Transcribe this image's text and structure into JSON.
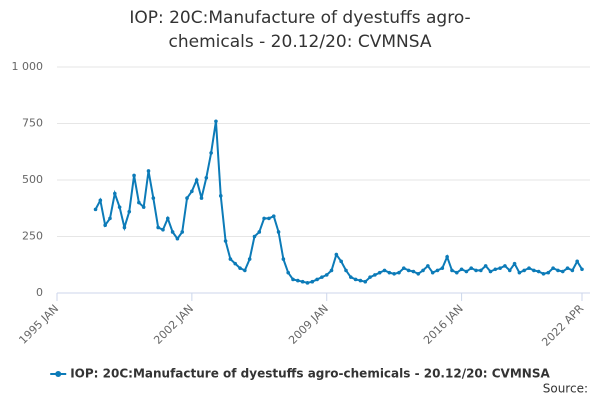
{
  "chart_data": {
    "type": "line",
    "title": "IOP: 20C:Manufacture of dyestuffs agro-chemicals - 20.12/20: CVMNSA",
    "source": "Source:",
    "xlim": [
      "1995-01",
      "2022-04"
    ],
    "xticks": [
      {
        "value": "1995-01",
        "label": "1995 JAN"
      },
      {
        "value": "2002-01",
        "label": "2002 JAN"
      },
      {
        "value": "2009-01",
        "label": "2009 JAN"
      },
      {
        "value": "2016-01",
        "label": "2016 JAN"
      },
      {
        "value": "2022-04",
        "label": "2022 APR"
      }
    ],
    "ylim": [
      0,
      1000
    ],
    "yticks": [
      0,
      250,
      500,
      750,
      {
        "value": 1000,
        "label": "1 000"
      }
    ],
    "grid": true,
    "legend": "bottom",
    "x": [
      "1997-01",
      "1997-04",
      "1997-07",
      "1997-10",
      "1998-01",
      "1998-04",
      "1998-07",
      "1998-10",
      "1999-01",
      "1999-04",
      "1999-07",
      "1999-10",
      "2000-01",
      "2000-04",
      "2000-07",
      "2000-10",
      "2001-01",
      "2001-04",
      "2001-07",
      "2001-10",
      "2002-01",
      "2002-04",
      "2002-07",
      "2002-10",
      "2003-01",
      "2003-04",
      "2003-07",
      "2003-10",
      "2004-01",
      "2004-04",
      "2004-07",
      "2004-10",
      "2005-01",
      "2005-04",
      "2005-07",
      "2005-10",
      "2006-01",
      "2006-04",
      "2006-07",
      "2006-10",
      "2007-01",
      "2007-04",
      "2007-07",
      "2007-10",
      "2008-01",
      "2008-04",
      "2008-07",
      "2008-10",
      "2009-01",
      "2009-04",
      "2009-07",
      "2009-10",
      "2010-01",
      "2010-04",
      "2010-07",
      "2010-10",
      "2011-01",
      "2011-04",
      "2011-07",
      "2011-10",
      "2012-01",
      "2012-04",
      "2012-07",
      "2012-10",
      "2013-01",
      "2013-04",
      "2013-07",
      "2013-10",
      "2014-01",
      "2014-04",
      "2014-07",
      "2014-10",
      "2015-01",
      "2015-04",
      "2015-07",
      "2015-10",
      "2016-01",
      "2016-04",
      "2016-07",
      "2016-10",
      "2017-01",
      "2017-04",
      "2017-07",
      "2017-10",
      "2018-01",
      "2018-04",
      "2018-07",
      "2018-10",
      "2019-01",
      "2019-04",
      "2019-07",
      "2019-10",
      "2020-01",
      "2020-04",
      "2020-07",
      "2020-10",
      "2021-01",
      "2021-04",
      "2021-07",
      "2021-10",
      "2022-01",
      "2022-04"
    ],
    "series": [
      {
        "name": "IOP: 20C:Manufacture of dyestuffs agro-chemicals - 20.12/20: CVMNSA",
        "color": "#0c7bb8",
        "values": [
          370,
          410,
          300,
          330,
          440,
          380,
          290,
          360,
          520,
          400,
          380,
          540,
          420,
          290,
          280,
          330,
          270,
          240,
          270,
          420,
          450,
          500,
          420,
          510,
          620,
          760,
          430,
          230,
          150,
          130,
          110,
          100,
          150,
          250,
          270,
          330,
          330,
          340,
          270,
          150,
          90,
          60,
          55,
          50,
          45,
          50,
          60,
          70,
          80,
          100,
          170,
          140,
          100,
          70,
          60,
          55,
          50,
          70,
          80,
          90,
          100,
          90,
          85,
          90,
          110,
          100,
          95,
          85,
          100,
          120,
          90,
          100,
          110,
          160,
          100,
          90,
          105,
          95,
          110,
          100,
          100,
          120,
          95,
          105,
          110,
          120,
          100,
          130,
          90,
          100,
          110,
          100,
          95,
          85,
          90,
          110,
          100,
          95,
          110,
          100,
          140,
          105
        ]
      }
    ]
  }
}
